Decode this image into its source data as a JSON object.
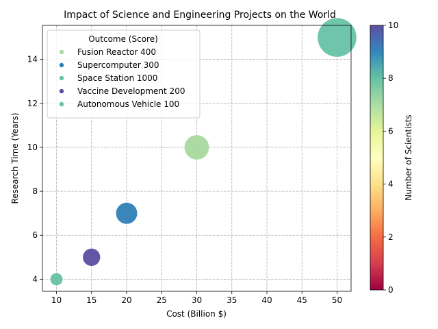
{
  "chart_data": {
    "type": "scatter",
    "title": "Impact of Science and Engineering Projects on the World",
    "xlabel": "Cost (Billion $)",
    "ylabel": "Research Time (Years)",
    "xlim": [
      8,
      52
    ],
    "ylim": [
      3.45,
      15.55
    ],
    "xticks": [
      10,
      15,
      20,
      25,
      30,
      35,
      40,
      45,
      50
    ],
    "yticks": [
      4,
      6,
      8,
      10,
      12,
      14
    ],
    "grid": true,
    "legend": {
      "title": "Outcome (Score)",
      "placement": "upper-left",
      "entries": [
        "Fusion Reactor 400",
        "Supercomputer 300",
        "Space Station 1000",
        "Vaccine Development 200",
        "Autonomous Vehicle 100"
      ]
    },
    "colorbar": {
      "label": "Number of Scientists",
      "range": [
        0,
        10
      ],
      "ticks": [
        0,
        2,
        4,
        6,
        8,
        10
      ],
      "colormap": "Spectral"
    },
    "points": [
      {
        "name": "Fusion Reactor",
        "score": 400,
        "x": 30,
        "y": 10,
        "color": "#a6d99e"
      },
      {
        "name": "Supercomputer",
        "score": 300,
        "x": 20,
        "y": 7,
        "color": "#2f7fb7"
      },
      {
        "name": "Space Station",
        "score": 1000,
        "x": 50,
        "y": 15,
        "color": "#66c2a5"
      },
      {
        "name": "Vaccine Development",
        "score": 200,
        "x": 15,
        "y": 5,
        "color": "#5a4ea1"
      },
      {
        "name": "Autonomous Vehicle",
        "score": 100,
        "x": 10,
        "y": 4,
        "color": "#66c2a5"
      }
    ]
  }
}
